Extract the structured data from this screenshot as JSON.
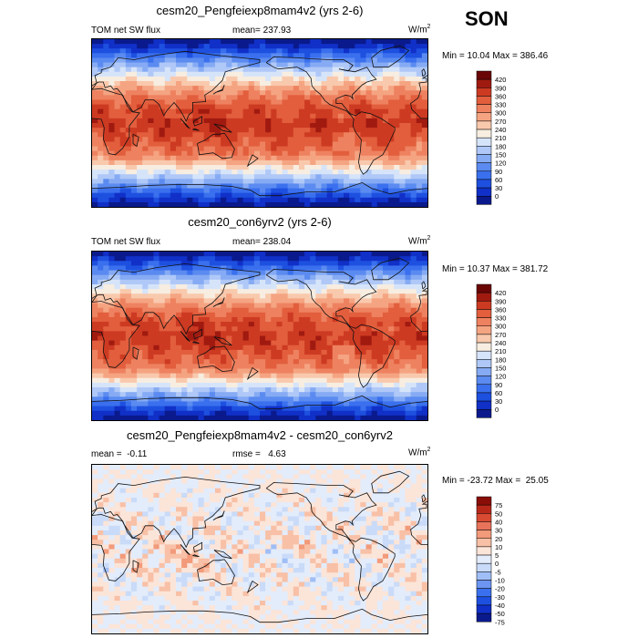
{
  "season": "SON",
  "variable": "TOM net SW flux",
  "units": {
    "base": "W/m",
    "exp": "2"
  },
  "colors": {
    "abs": [
      "#0a1a8c",
      "#1030c8",
      "#1e50e0",
      "#3a70ee",
      "#5b8bf0",
      "#86abf4",
      "#afc8f7",
      "#d6e4fa",
      "#f7ede0",
      "#f9c9ad",
      "#f5a482",
      "#ee8260",
      "#e25e3d",
      "#cd3a22",
      "#a01a10",
      "#6b0606"
    ],
    "diff": [
      "#0a1a8c",
      "#1030c8",
      "#1e50e0",
      "#3a70ee",
      "#6c96f2",
      "#a0bef6",
      "#c9dbf8",
      "#e3ecfb",
      "#fbe4d8",
      "#f8c0a6",
      "#f29a7a",
      "#e8735a",
      "#d94a32",
      "#b8281a",
      "#8a0e08"
    ]
  },
  "chart_data": [
    {
      "type": "heatmap",
      "name": "cesm20_Pengfeiexp8mam4v2",
      "title": "cesm20_Pengfeiexp8mam4v2 (yrs 2-6)",
      "left_label": "TOM net SW flux",
      "mean_label": "mean=",
      "mean_value": "237.93",
      "min_label": "Min =",
      "min_value": "10.04",
      "max_label": "Max =",
      "max_value": "386.46",
      "legend_levels": [
        "0",
        "30",
        "60",
        "90",
        "120",
        "150",
        "180",
        "210",
        "240",
        "270",
        "300",
        "330",
        "360",
        "390",
        "420"
      ],
      "xlim": [
        0,
        360
      ],
      "ylim": [
        -90,
        90
      ]
    },
    {
      "type": "heatmap",
      "name": "cesm20_con6yrv2",
      "title": "cesm20_con6yrv2 (yrs 2-6)",
      "left_label": "TOM net SW flux",
      "mean_label": "mean=",
      "mean_value": "238.04",
      "min_label": "Min =",
      "min_value": "10.37",
      "max_label": "Max =",
      "max_value": "381.72",
      "legend_levels": [
        "0",
        "30",
        "60",
        "90",
        "120",
        "150",
        "180",
        "210",
        "240",
        "270",
        "300",
        "330",
        "360",
        "390",
        "420"
      ],
      "xlim": [
        0,
        360
      ],
      "ylim": [
        -90,
        90
      ]
    },
    {
      "type": "heatmap",
      "name": "difference",
      "title": "cesm20_Pengfeiexp8mam4v2 - cesm20_con6yrv2",
      "left_label": "mean =",
      "left_value": "-0.11",
      "mean_label": "rmse =",
      "mean_value": "4.63",
      "min_label": "Min =",
      "min_value": "-23.72",
      "max_label": "Max =",
      "max_value": "25.05",
      "legend_levels": [
        "-75",
        "-50",
        "-40",
        "-30",
        "-20",
        "-10",
        "-5",
        "0",
        "5",
        "10",
        "20",
        "30",
        "40",
        "50",
        "75"
      ],
      "xlim": [
        0,
        360
      ],
      "ylim": [
        -90,
        90
      ]
    }
  ]
}
